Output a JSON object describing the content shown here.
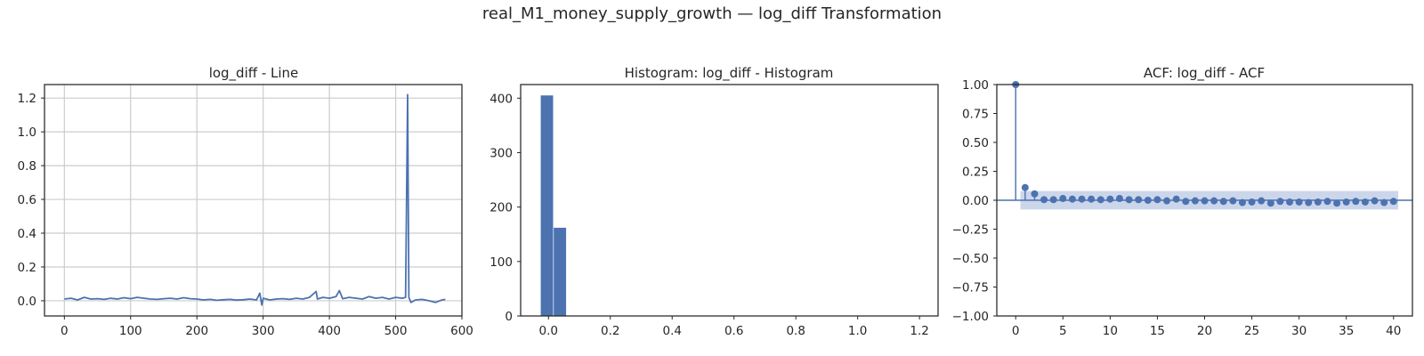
{
  "figure": {
    "suptitle": "real_M1_money_supply_growth — log_diff Transformation"
  },
  "chart_data": [
    {
      "type": "line",
      "title": "log_diff - Line",
      "grid": true,
      "color": "#4c72b0",
      "xlim": [
        -30,
        600
      ],
      "ylim": [
        -0.09,
        1.28
      ],
      "xticks": [
        0,
        100,
        200,
        300,
        400,
        500,
        600
      ],
      "xtick_labels": [
        "0",
        "100",
        "200",
        "300",
        "400",
        "500",
        "600"
      ],
      "yticks": [
        0.0,
        0.2,
        0.4,
        0.6,
        0.8,
        1.0,
        1.2
      ],
      "ytick_labels": [
        "0.0",
        "0.2",
        "0.4",
        "0.6",
        "0.8",
        "1.0",
        "1.2"
      ],
      "series": [
        {
          "x": [
            0,
            10,
            20,
            30,
            40,
            50,
            60,
            70,
            80,
            90,
            100,
            110,
            120,
            130,
            140,
            150,
            160,
            170,
            180,
            190,
            200,
            210,
            220,
            230,
            240,
            250,
            260,
            270,
            280,
            290,
            295,
            298,
            300,
            310,
            320,
            330,
            340,
            350,
            360,
            370,
            380,
            382,
            390,
            400,
            410,
            415,
            420,
            430,
            440,
            450,
            460,
            470,
            480,
            490,
            500,
            510,
            515,
            518,
            520,
            523,
            530,
            540,
            550,
            560,
            570,
            575
          ],
          "y": [
            0.01,
            0.015,
            0.005,
            0.02,
            0.01,
            0.012,
            0.008,
            0.015,
            0.01,
            0.018,
            0.012,
            0.02,
            0.015,
            0.01,
            0.008,
            0.012,
            0.015,
            0.01,
            0.018,
            0.012,
            0.01,
            0.005,
            0.008,
            0.003,
            0.006,
            0.008,
            0.004,
            0.006,
            0.01,
            0.005,
            0.045,
            -0.025,
            0.015,
            0.005,
            0.01,
            0.012,
            0.008,
            0.015,
            0.01,
            0.02,
            0.055,
            0.01,
            0.02,
            0.015,
            0.025,
            0.06,
            0.012,
            0.02,
            0.015,
            0.01,
            0.025,
            0.015,
            0.02,
            0.01,
            0.02,
            0.015,
            0.02,
            1.22,
            0.02,
            -0.01,
            0.005,
            0.008,
            0.0,
            -0.01,
            0.005,
            0.008
          ]
        }
      ]
    },
    {
      "type": "bar",
      "title": "Histogram: log_diff - Histogram",
      "grid": false,
      "color": "#4c72b0",
      "xlim": [
        -0.09,
        1.26
      ],
      "ylim": [
        0,
        425
      ],
      "xticks": [
        0.0,
        0.2,
        0.4,
        0.6,
        0.8,
        1.0,
        1.2
      ],
      "xtick_labels": [
        "0.0",
        "0.2",
        "0.4",
        "0.6",
        "0.8",
        "1.0",
        "1.2"
      ],
      "yticks": [
        0,
        100,
        200,
        300,
        400
      ],
      "ytick_labels": [
        "0",
        "100",
        "200",
        "300",
        "400"
      ],
      "bins": [
        {
          "x0": -0.025,
          "x1": 0.015,
          "value": 405
        },
        {
          "x0": 0.017,
          "x1": 0.057,
          "value": 162
        }
      ]
    },
    {
      "type": "scatter",
      "title": "ACF: log_diff - ACF",
      "grid": false,
      "color": "#4c72b0",
      "band_color": "#c3cfe8",
      "xlim": [
        -2,
        42
      ],
      "ylim": [
        -1.0,
        1.0
      ],
      "xticks": [
        0,
        5,
        10,
        15,
        20,
        25,
        30,
        35,
        40
      ],
      "xtick_labels": [
        "0",
        "5",
        "10",
        "15",
        "20",
        "25",
        "30",
        "35",
        "40"
      ],
      "yticks": [
        -1.0,
        -0.75,
        -0.5,
        -0.25,
        0.0,
        0.25,
        0.5,
        0.75,
        1.0
      ],
      "ytick_labels": [
        "−1.00",
        "−0.75",
        "−0.50",
        "−0.25",
        "0.00",
        "0.25",
        "0.50",
        "0.75",
        "1.00"
      ],
      "confidence_band": [
        -0.08,
        0.08
      ],
      "lags": [
        0,
        1,
        2,
        3,
        4,
        5,
        6,
        7,
        8,
        9,
        10,
        11,
        12,
        13,
        14,
        15,
        16,
        17,
        18,
        19,
        20,
        21,
        22,
        23,
        24,
        25,
        26,
        27,
        28,
        29,
        30,
        31,
        32,
        33,
        34,
        35,
        36,
        37,
        38,
        39,
        40
      ],
      "values": [
        1.0,
        0.11,
        0.055,
        0.005,
        0.005,
        0.015,
        0.01,
        0.01,
        0.01,
        0.005,
        0.01,
        0.015,
        0.005,
        0.005,
        0.0,
        0.005,
        -0.005,
        0.01,
        -0.01,
        -0.005,
        -0.005,
        -0.005,
        -0.01,
        -0.005,
        -0.02,
        -0.015,
        -0.005,
        -0.025,
        -0.01,
        -0.015,
        -0.015,
        -0.02,
        -0.015,
        -0.01,
        -0.025,
        -0.015,
        -0.01,
        -0.015,
        -0.005,
        -0.02,
        -0.01
      ]
    }
  ]
}
